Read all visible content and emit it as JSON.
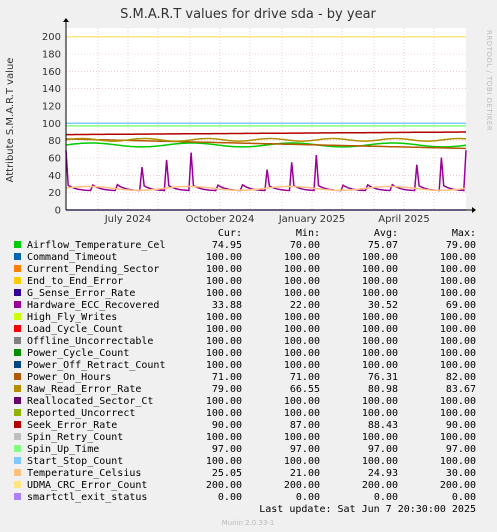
{
  "chart_data": {
    "type": "line",
    "title": "S.M.A.R.T values for drive sda - by year",
    "ylabel": "Attribute S.M.A.R.T value",
    "side_label": "RRDTOOL / TOBI OETIKER",
    "footer": "Munin 2.0.33-1",
    "last_update": "Last update:  Sat Jun  7 20:30:00 2025",
    "ylim": [
      0,
      210
    ],
    "yticks": [
      0,
      20,
      40,
      60,
      80,
      100,
      120,
      140,
      160,
      180,
      200
    ],
    "xticks": [
      "July 2024",
      "October 2024",
      "January 2025",
      "April 2025"
    ],
    "grid": true,
    "legend_columns": [
      "Cur:",
      "Min:",
      "Avg:",
      "Max:"
    ],
    "series": [
      {
        "name": "Airflow_Temperature_Cel",
        "color": "#00cc00",
        "cur": "74.95",
        "min": "70.00",
        "avg": "75.07",
        "max": "79.00"
      },
      {
        "name": "Command_Timeout",
        "color": "#0066b3",
        "cur": "100.00",
        "min": "100.00",
        "avg": "100.00",
        "max": "100.00"
      },
      {
        "name": "Current_Pending_Sector",
        "color": "#ff8000",
        "cur": "100.00",
        "min": "100.00",
        "avg": "100.00",
        "max": "100.00"
      },
      {
        "name": "End_to_End_Error",
        "color": "#ffcc00",
        "cur": "100.00",
        "min": "100.00",
        "avg": "100.00",
        "max": "100.00"
      },
      {
        "name": "G_Sense_Error_Rate",
        "color": "#330099",
        "cur": "100.00",
        "min": "100.00",
        "avg": "100.00",
        "max": "100.00"
      },
      {
        "name": "Hardware_ECC_Recovered",
        "color": "#990099",
        "cur": "33.88",
        "min": "22.00",
        "avg": "30.52",
        "max": "69.00"
      },
      {
        "name": "High_Fly_Writes",
        "color": "#ccff00",
        "cur": "100.00",
        "min": "100.00",
        "avg": "100.00",
        "max": "100.00"
      },
      {
        "name": "Load_Cycle_Count",
        "color": "#ff0000",
        "cur": "100.00",
        "min": "100.00",
        "avg": "100.00",
        "max": "100.00"
      },
      {
        "name": "Offline_Uncorrectable",
        "color": "#808080",
        "cur": "100.00",
        "min": "100.00",
        "avg": "100.00",
        "max": "100.00"
      },
      {
        "name": "Power_Cycle_Count",
        "color": "#008f00",
        "cur": "100.00",
        "min": "100.00",
        "avg": "100.00",
        "max": "100.00"
      },
      {
        "name": "Power_Off_Retract_Count",
        "color": "#00487d",
        "cur": "100.00",
        "min": "100.00",
        "avg": "100.00",
        "max": "100.00"
      },
      {
        "name": "Power_On_Hours",
        "color": "#b35a00",
        "cur": "71.00",
        "min": "71.00",
        "avg": "76.31",
        "max": "82.00"
      },
      {
        "name": "Raw_Read_Error_Rate",
        "color": "#b38f00",
        "cur": "79.00",
        "min": "66.55",
        "avg": "80.98",
        "max": "83.67"
      },
      {
        "name": "Reallocated_Sector_Ct",
        "color": "#6b006b",
        "cur": "100.00",
        "min": "100.00",
        "avg": "100.00",
        "max": "100.00"
      },
      {
        "name": "Reported_Uncorrect",
        "color": "#8fb300",
        "cur": "100.00",
        "min": "100.00",
        "avg": "100.00",
        "max": "100.00"
      },
      {
        "name": "Seek_Error_Rate",
        "color": "#b30000",
        "cur": "90.00",
        "min": "87.00",
        "avg": "88.43",
        "max": "90.00"
      },
      {
        "name": "Spin_Retry_Count",
        "color": "#bebebe",
        "cur": "100.00",
        "min": "100.00",
        "avg": "100.00",
        "max": "100.00"
      },
      {
        "name": "Spin_Up_Time",
        "color": "#80ff80",
        "cur": "97.00",
        "min": "97.00",
        "avg": "97.00",
        "max": "97.00"
      },
      {
        "name": "Start_Stop_Count",
        "color": "#80c9ff",
        "cur": "100.00",
        "min": "100.00",
        "avg": "100.00",
        "max": "100.00"
      },
      {
        "name": "Temperature_Celsius",
        "color": "#ffc080",
        "cur": "25.05",
        "min": "21.00",
        "avg": "24.93",
        "max": "30.00"
      },
      {
        "name": "UDMA_CRC_Error_Count",
        "color": "#ffe680",
        "cur": "200.00",
        "min": "200.00",
        "avg": "200.00",
        "max": "200.00"
      },
      {
        "name": "smartctl_exit_status",
        "color": "#aa80ff",
        "cur": "0.00",
        "min": "0.00",
        "avg": "0.00",
        "max": "0.00"
      }
    ]
  }
}
